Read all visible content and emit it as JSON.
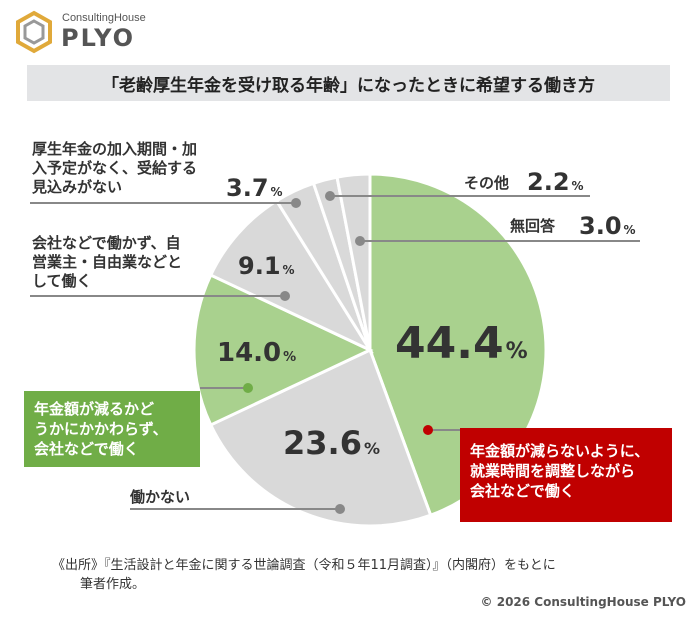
{
  "brand": {
    "sub": "ConsultingHouse",
    "main": "PLYO"
  },
  "title": "「老齢厚生年金を受け取る年齢」になったときに希望する働き方",
  "chart_data": {
    "type": "pie",
    "unit": "%",
    "slices": [
      {
        "label": "年金額が減らないように、就業時間を調整しながら会社などで働く",
        "value": 44.4,
        "color": "#a9d18e"
      },
      {
        "label": "働かない",
        "value": 23.6,
        "color": "#d9d9d9"
      },
      {
        "label": "年金額が減るかどうかにかかわらず、会社などで働く",
        "value": 14.0,
        "color": "#a9d18e"
      },
      {
        "label": "会社などで働かず、自営業主・自由業などとして働く",
        "value": 9.1,
        "color": "#d9d9d9"
      },
      {
        "label": "厚生年金の加入期間・加入予定がなく、受給する見込みがない",
        "value": 3.7,
        "color": "#d9d9d9"
      },
      {
        "label": "その他",
        "value": 2.2,
        "color": "#d9d9d9"
      },
      {
        "label": "無回答",
        "value": 3.0,
        "color": "#d9d9d9"
      }
    ]
  },
  "labels": {
    "s0_lines": [
      "年金額が減らないように、",
      "就業時間を調整しながら",
      "会社などで働く"
    ],
    "s1": "働かない",
    "s2_lines": [
      "年金額が減るかど",
      "うかにかかわらず、",
      "会社などで働く"
    ],
    "s3_lines": [
      "会社などで働かず、自",
      "営業主・自由業などと",
      "して働く"
    ],
    "s4_lines": [
      "厚生年金の加入期間・加",
      "入予定がなく、受給する",
      "見込みがない"
    ],
    "s5": "その他",
    "s6": "無回答"
  },
  "values": {
    "s0": "44.4",
    "s1": "23.6",
    "s2": "14.0",
    "s3": "9.1",
    "s4": "3.7",
    "s5": "2.2",
    "s6": "3.0",
    "unit": "%"
  },
  "colors": {
    "highlight_red": "#c00000",
    "highlight_green": "#70ad47",
    "leader": "#888888"
  },
  "source_lines": [
    "《出所》『生活設計と年金に関する世論調査（令和５年11月調査）』（内閣府）をもとに",
    "筆者作成。"
  ],
  "copyright": "© 2026 ConsultingHouse PLYO"
}
